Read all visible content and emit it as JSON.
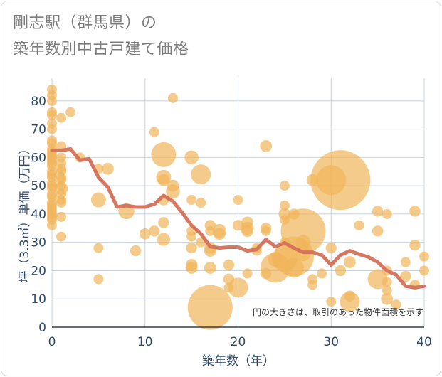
{
  "header": {
    "title_line1": "剛志駅（群馬県）の",
    "title_line2": "築年数別中古戸建て価格"
  },
  "colors": {
    "bubble": "#f1b55a",
    "line": "#d4705a",
    "grid": "#c8d4e0",
    "axis_text": "#2f4a6d"
  },
  "chart_data": {
    "type": "scatter",
    "title": "剛志駅（群馬県）の 築年数別中古戸建て価格",
    "xlabel": "築年数（年）",
    "ylabel": "坪（3.3㎡）単価（万円）",
    "xlim": [
      0,
      40
    ],
    "ylim": [
      0,
      88
    ],
    "x_ticks": [
      0,
      10,
      20,
      30,
      40
    ],
    "y_ticks": [
      0,
      10,
      20,
      30,
      40,
      50,
      60,
      70,
      80
    ],
    "note": "円の大きさは、取引のあった物件面積を示す",
    "grid": true,
    "series": [
      {
        "kind": "bubble",
        "points": [
          [
            0,
            84,
            1
          ],
          [
            0,
            82,
            1
          ],
          [
            0,
            80,
            1
          ],
          [
            0,
            76,
            1
          ],
          [
            0,
            75,
            1
          ],
          [
            0,
            72,
            1
          ],
          [
            0,
            70,
            1
          ],
          [
            0,
            66,
            1
          ],
          [
            0,
            65,
            1
          ],
          [
            0,
            63,
            1
          ],
          [
            0,
            62,
            1
          ],
          [
            0,
            61,
            1
          ],
          [
            0,
            60,
            1
          ],
          [
            0,
            59,
            1
          ],
          [
            0,
            58,
            1
          ],
          [
            0,
            57,
            1
          ],
          [
            0,
            55,
            1
          ],
          [
            0,
            54,
            1
          ],
          [
            0,
            53,
            1
          ],
          [
            0,
            51,
            1
          ],
          [
            0,
            50,
            1
          ],
          [
            0,
            49,
            1
          ],
          [
            0,
            47,
            1
          ],
          [
            0,
            46,
            1
          ],
          [
            0,
            44,
            1
          ],
          [
            0,
            43,
            1
          ],
          [
            0,
            42,
            1
          ],
          [
            0,
            41,
            1
          ],
          [
            0,
            40,
            1
          ],
          [
            0,
            39,
            1
          ],
          [
            0,
            38,
            1
          ],
          [
            0,
            36,
            1
          ],
          [
            1,
            74,
            1
          ],
          [
            1,
            64,
            1
          ],
          [
            1,
            60,
            1
          ],
          [
            1,
            58,
            1
          ],
          [
            1,
            56,
            1
          ],
          [
            1,
            55,
            1
          ],
          [
            1,
            53,
            1
          ],
          [
            1,
            52,
            1
          ],
          [
            1,
            50,
            1
          ],
          [
            1,
            49,
            1.3
          ],
          [
            1,
            47,
            1
          ],
          [
            1,
            45,
            1
          ],
          [
            1,
            44,
            1
          ],
          [
            1,
            39,
            1
          ],
          [
            1,
            32,
            1
          ],
          [
            2,
            76,
            1
          ],
          [
            3,
            60,
            1
          ],
          [
            5,
            56,
            1
          ],
          [
            5,
            45,
            1.5
          ],
          [
            5,
            28,
            1
          ],
          [
            5,
            17,
            1
          ],
          [
            6,
            56,
            1.2
          ],
          [
            8,
            41,
            1.6
          ],
          [
            9,
            27,
            1.1
          ],
          [
            10,
            33,
            1.1
          ],
          [
            11,
            69,
            1
          ],
          [
            11,
            34,
            1.1
          ],
          [
            12,
            61,
            2.5
          ],
          [
            12,
            53,
            1.5
          ],
          [
            12,
            52,
            1.2
          ],
          [
            12,
            45,
            1.1
          ],
          [
            12,
            37,
            1.1
          ],
          [
            12,
            31,
            1.3
          ],
          [
            13,
            81,
            1
          ],
          [
            13,
            50,
            1.2
          ],
          [
            13,
            48,
            1.4
          ],
          [
            15,
            60,
            1.4
          ],
          [
            15,
            45,
            1
          ],
          [
            15,
            34,
            1
          ],
          [
            15,
            32,
            1
          ],
          [
            15,
            28,
            1.1
          ],
          [
            15,
            22,
            1.2
          ],
          [
            15,
            21,
            1.2
          ],
          [
            16,
            54,
            2
          ],
          [
            16,
            44,
            1
          ],
          [
            16,
            30,
            1
          ],
          [
            17,
            36,
            1.1
          ],
          [
            17,
            34,
            1
          ],
          [
            17,
            28,
            1.2
          ],
          [
            17,
            27,
            1.2
          ],
          [
            17,
            21,
            1.2
          ],
          [
            17,
            7,
            4.5
          ],
          [
            18,
            34,
            1.4
          ],
          [
            18,
            33,
            1.2
          ],
          [
            19,
            22,
            1.1
          ],
          [
            19,
            17,
            1.1
          ],
          [
            19,
            14,
            1
          ],
          [
            20,
            45,
            1
          ],
          [
            20,
            36,
            1.1
          ],
          [
            20,
            14,
            2
          ],
          [
            21,
            37,
            1.2
          ],
          [
            21,
            35,
            1.3
          ],
          [
            21,
            34,
            1.2
          ],
          [
            21,
            19,
            1
          ],
          [
            22,
            28,
            1
          ],
          [
            22,
            27,
            1
          ],
          [
            23,
            64,
            1.2
          ],
          [
            23,
            35,
            1.1
          ],
          [
            23,
            34,
            1
          ],
          [
            23,
            19,
            1.1
          ],
          [
            24,
            24,
            1.5
          ],
          [
            24,
            21,
            3
          ],
          [
            25,
            50,
            1
          ],
          [
            25,
            43,
            1
          ],
          [
            25,
            40,
            1.2
          ],
          [
            25,
            38,
            1
          ],
          [
            25,
            30,
            1
          ],
          [
            25,
            24,
            2.5
          ],
          [
            26,
            40,
            1.1
          ],
          [
            26,
            25,
            4
          ],
          [
            26,
            21,
            2
          ],
          [
            27,
            34,
            4.5
          ],
          [
            27,
            30,
            1.5
          ],
          [
            27,
            26,
            1.5
          ],
          [
            28,
            52,
            1.2
          ],
          [
            28,
            17,
            1
          ],
          [
            28,
            15,
            1
          ],
          [
            29,
            19,
            1
          ],
          [
            30,
            52,
            3
          ],
          [
            30,
            28,
            1.1
          ],
          [
            30,
            9,
            1
          ],
          [
            31,
            52,
            6
          ],
          [
            31,
            20,
            1.1
          ],
          [
            32,
            11,
            1.1
          ],
          [
            32,
            9,
            2
          ],
          [
            32,
            23,
            1.2
          ],
          [
            33,
            36,
            1
          ],
          [
            35,
            41,
            1.1
          ],
          [
            35,
            34,
            1.1
          ],
          [
            35,
            17,
            2
          ],
          [
            36,
            40,
            1
          ],
          [
            36,
            16,
            1
          ],
          [
            36,
            13,
            1
          ],
          [
            36,
            10,
            1.2
          ],
          [
            36,
            20,
            1
          ],
          [
            37,
            8,
            1
          ],
          [
            38,
            23,
            1
          ],
          [
            38,
            18,
            1.1
          ],
          [
            39,
            41,
            1.1
          ],
          [
            39,
            29,
            1.1
          ],
          [
            39,
            15,
            1
          ],
          [
            40,
            25,
            1
          ],
          [
            40,
            20,
            1
          ]
        ]
      },
      {
        "kind": "line",
        "x": [
          0,
          1,
          2,
          3,
          4,
          5,
          6,
          7,
          8,
          9,
          10,
          11,
          12,
          13,
          14,
          15,
          16,
          17,
          18,
          19,
          20,
          21,
          22,
          23,
          24,
          25,
          26,
          27,
          28,
          29,
          30,
          31,
          32,
          33,
          34,
          35,
          36,
          37,
          38,
          39,
          40
        ],
        "y": [
          62.5,
          62.5,
          63,
          59,
          59.5,
          53,
          49.5,
          42.5,
          43,
          42.5,
          42.5,
          43.5,
          46.5,
          44.5,
          40.5,
          36,
          33,
          28.5,
          28,
          28.3,
          28.3,
          27,
          27.5,
          31,
          28.5,
          29.8,
          28,
          26.5,
          26.5,
          25.5,
          22,
          25.5,
          27,
          25.8,
          24.8,
          23,
          20,
          18.5,
          14.5,
          14,
          14.5
        ]
      }
    ]
  }
}
